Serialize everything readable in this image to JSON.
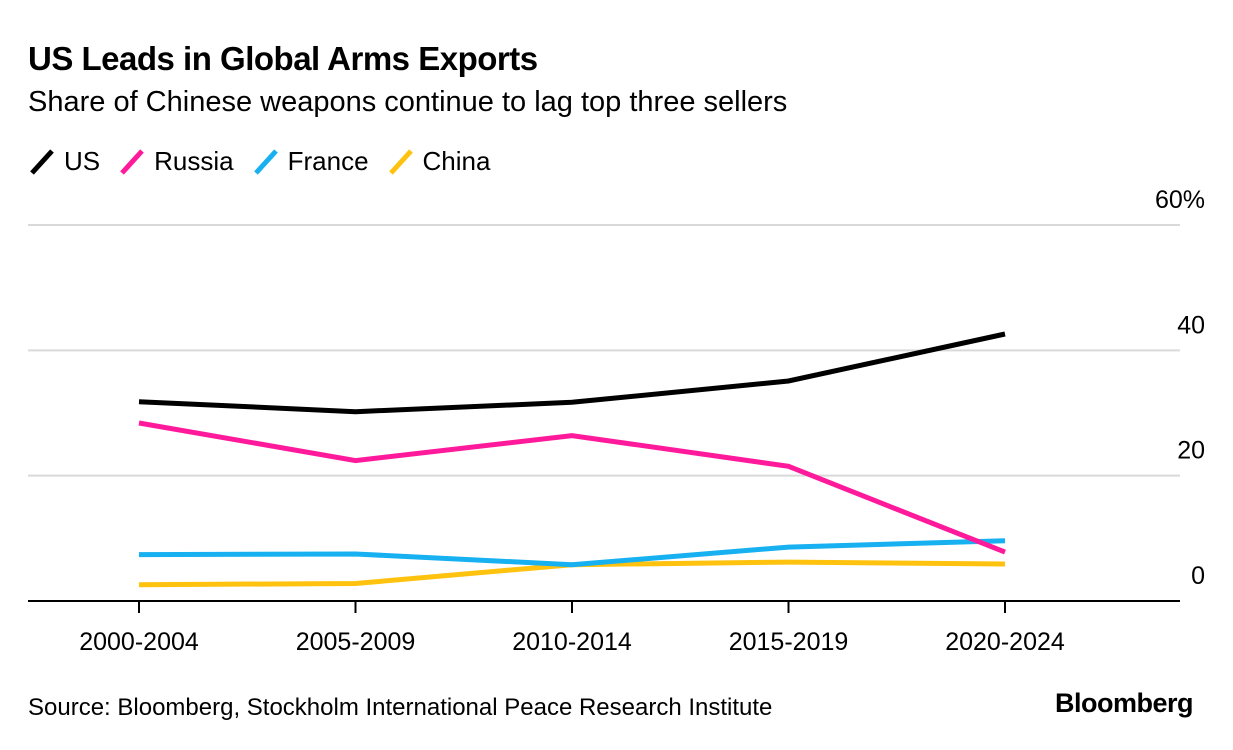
{
  "header": {
    "title": "US Leads in Global Arms Exports",
    "subtitle": "Share of Chinese weapons continue to lag top three sellers"
  },
  "footer": {
    "source": "Source: Bloomberg, Stockholm International Peace Research Institute",
    "brand": "Bloomberg"
  },
  "chart_data": {
    "type": "line",
    "title": "US Leads in Global Arms Exports",
    "subtitle": "Share of Chinese weapons continue to lag top three sellers",
    "categories": [
      "2000-2004",
      "2005-2009",
      "2010-2014",
      "2015-2019",
      "2020-2024"
    ],
    "y_ticks": [
      "0",
      "20",
      "40",
      "60%"
    ],
    "ylim": [
      0,
      60
    ],
    "grid": true,
    "y_axis_position": "right",
    "legend_position": "top-left",
    "series": [
      {
        "name": "US",
        "color": "#000000",
        "values": [
          31.8,
          30.2,
          31.7,
          35.1,
          42.6
        ]
      },
      {
        "name": "Russia",
        "color": "#ff1a9c",
        "values": [
          28.4,
          22.4,
          26.4,
          21.5,
          7.8
        ]
      },
      {
        "name": "France",
        "color": "#17b0f0",
        "values": [
          7.4,
          7.5,
          5.8,
          8.6,
          9.6
        ]
      },
      {
        "name": "China",
        "color": "#ffc20e",
        "values": [
          2.6,
          2.8,
          5.8,
          6.2,
          5.9
        ]
      }
    ]
  }
}
